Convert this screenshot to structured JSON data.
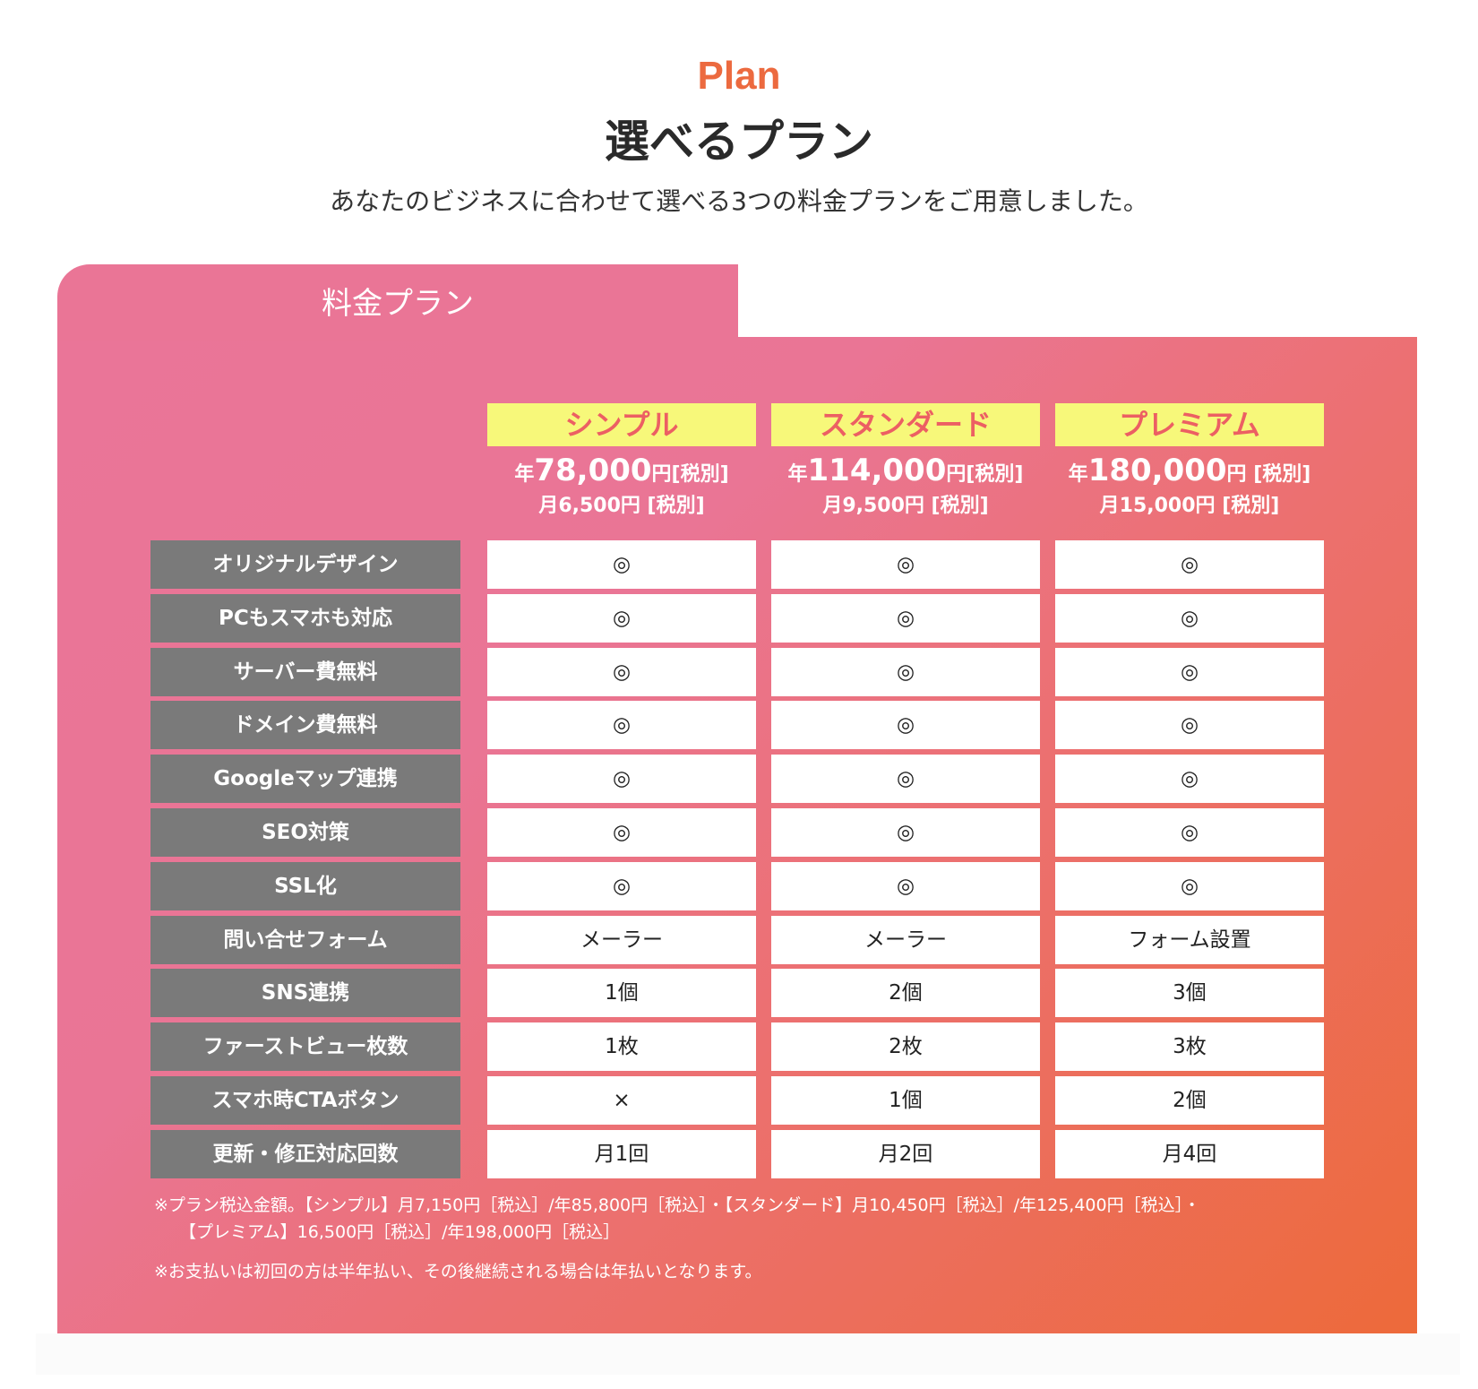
{
  "header": {
    "eyebrow": "Plan",
    "title": "選べるプラン",
    "subtitle": "あなたのビジネスに合わせて選べる3つの料金プランをご用意しました。"
  },
  "card": {
    "tab_label": "料金プラン"
  },
  "plans": [
    {
      "name": "シンプル",
      "yen_prefix": "年",
      "yearly": "78,000",
      "yen_suffix": "円[税別]",
      "monthly": "月6,500円 [税別]"
    },
    {
      "name": "スタンダード",
      "yen_prefix": "年",
      "yearly": "114,000",
      "yen_suffix": "円[税別]",
      "monthly": "月9,500円 [税別]"
    },
    {
      "name": "プレミアム",
      "yen_prefix": "年",
      "yearly": "180,000",
      "yen_suffix": "円 [税別]",
      "monthly": "月15,000円 [税別]"
    }
  ],
  "features": [
    {
      "label": "オリジナルデザイン",
      "values": [
        "◎",
        "◎",
        "◎"
      ]
    },
    {
      "label": "PCもスマホも対応",
      "values": [
        "◎",
        "◎",
        "◎"
      ]
    },
    {
      "label": "サーバー費無料",
      "values": [
        "◎",
        "◎",
        "◎"
      ]
    },
    {
      "label": "ドメイン費無料",
      "values": [
        "◎",
        "◎",
        "◎"
      ]
    },
    {
      "label": "Googleマップ連携",
      "values": [
        "◎",
        "◎",
        "◎"
      ]
    },
    {
      "label": "SEO対策",
      "values": [
        "◎",
        "◎",
        "◎"
      ]
    },
    {
      "label": "SSL化",
      "values": [
        "◎",
        "◎",
        "◎"
      ]
    },
    {
      "label": "問い合せフォーム",
      "values": [
        "メーラー",
        "メーラー",
        "フォーム設置"
      ]
    },
    {
      "label": "SNS連携",
      "values": [
        "1個",
        "2個",
        "3個"
      ]
    },
    {
      "label": "ファーストビュー枚数",
      "values": [
        "1枚",
        "2枚",
        "3枚"
      ]
    },
    {
      "label": "スマホ時CTAボタン",
      "values": [
        "×",
        "1個",
        "2個"
      ]
    },
    {
      "label": "更新・修正対応回数",
      "values": [
        "月1回",
        "月2回",
        "月4回"
      ]
    }
  ],
  "notes": {
    "tax_line1": "※プラン税込金額。【シンプル】月7,150円［税込］/年85,800円［税込］・【スタンダード】月10,450円［税込］/年125,400円［税込］・",
    "tax_line2": "【プレミアム】16,500円［税込］/年198,000円［税込］",
    "payment": "※お支払いは初回の方は半年払い、その後継続される場合は年払いとなります。"
  }
}
